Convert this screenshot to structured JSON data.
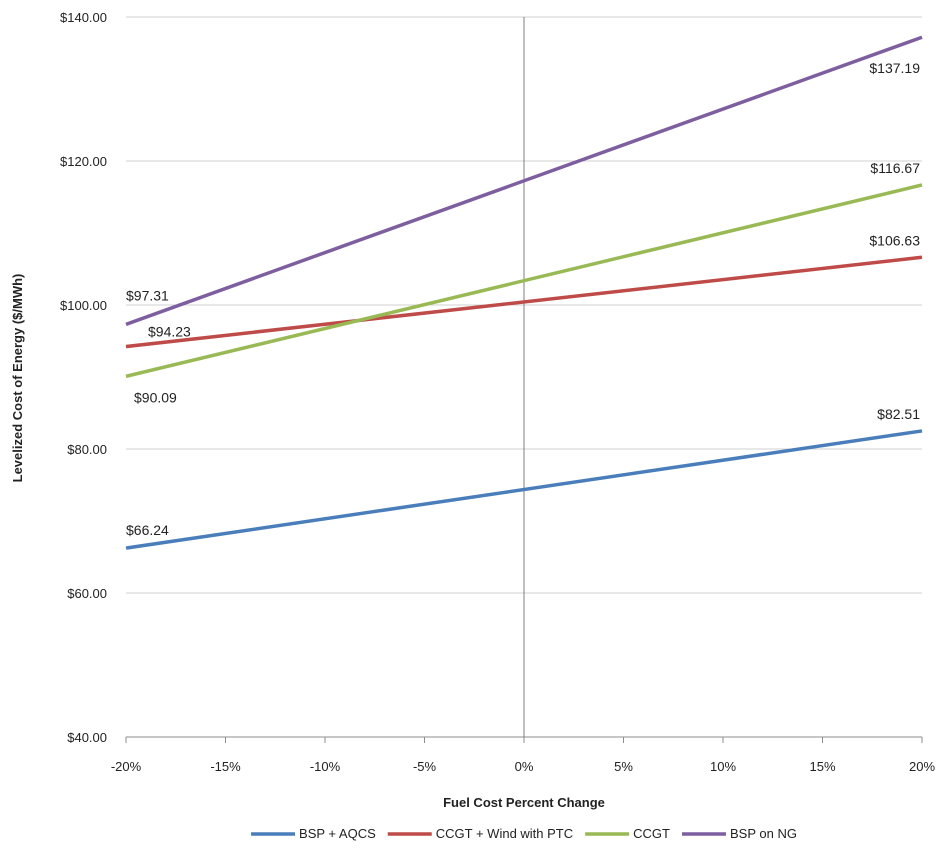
{
  "chart_data": {
    "type": "line",
    "xlabel": "Fuel Cost Percent Change",
    "ylabel": "Levelized Cost of Energy ($/MWh)",
    "x": [
      -20,
      20
    ],
    "x_tick_values": [
      -20,
      -15,
      -10,
      -5,
      0,
      5,
      10,
      15,
      20
    ],
    "x_tick_labels": [
      "-20%",
      "-15%",
      "-10%",
      "-5%",
      "0%",
      "5%",
      "10%",
      "15%",
      "20%"
    ],
    "ylim": [
      40,
      140
    ],
    "y_tick_values": [
      40,
      60,
      80,
      100,
      120,
      140
    ],
    "y_tick_labels": [
      "$40.00",
      "$60.00",
      "$80.00",
      "$100.00",
      "$120.00",
      "$140.00"
    ],
    "grid": "horizontal",
    "legend": "bottom",
    "reference_line_x": 0,
    "series": [
      {
        "name": "BSP + AQCS",
        "values": [
          66.24,
          82.51
        ],
        "color": "#4a7ebb",
        "labels": [
          "$66.24",
          "$82.51"
        ]
      },
      {
        "name": "CCGT + Wind with PTC",
        "values": [
          94.23,
          106.63
        ],
        "color": "#be4b48",
        "labels": [
          "$94.23",
          "$106.63"
        ]
      },
      {
        "name": "CCGT",
        "values": [
          90.09,
          116.67
        ],
        "color": "#98b954",
        "labels": [
          "$90.09",
          "$116.67"
        ]
      },
      {
        "name": "BSP on NG",
        "values": [
          97.31,
          137.19
        ],
        "color": "#7d5fa0",
        "labels": [
          "$97.31",
          "$137.19"
        ]
      }
    ]
  }
}
